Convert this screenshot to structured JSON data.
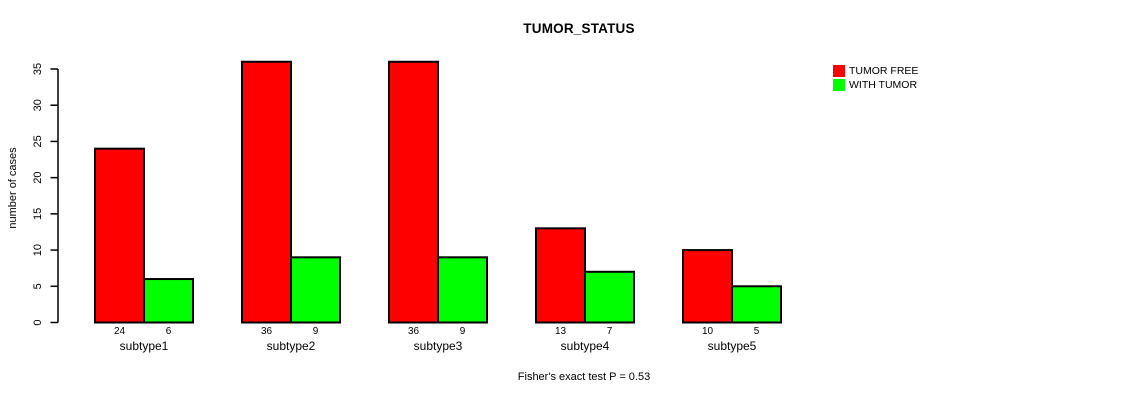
{
  "chart_data": {
    "type": "bar",
    "title": "TUMOR_STATUS",
    "categories": [
      "subtype1",
      "subtype2",
      "subtype3",
      "subtype4",
      "subtype5"
    ],
    "series": [
      {
        "name": "TUMOR FREE",
        "color": "#FF0000",
        "values": [
          24,
          36,
          36,
          13,
          10
        ]
      },
      {
        "name": "WITH TUMOR",
        "color": "#00FF00",
        "values": [
          6,
          9,
          9,
          7,
          5
        ]
      }
    ],
    "xlabel": "",
    "ylabel": "number of cases",
    "ylim": [
      0,
      36
    ],
    "yticks": [
      0,
      5,
      10,
      15,
      20,
      25,
      30,
      35
    ],
    "bar_value_labels": [
      [
        "24",
        "36",
        "36",
        "13",
        "10"
      ],
      [
        "6",
        "9",
        "9",
        "7",
        "5"
      ]
    ],
    "legend_position": "top-right",
    "grid": false,
    "annotation": "Fisher's exact test P = 0.53"
  }
}
